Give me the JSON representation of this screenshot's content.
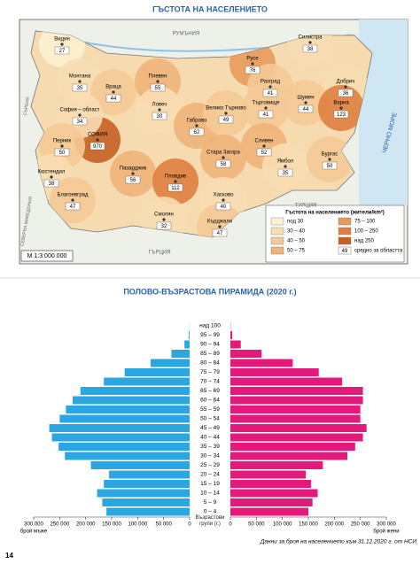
{
  "map": {
    "title": "ГЪСТОТА НА НАСЕЛЕНИЕТО",
    "scale": "M 1:3 000 000",
    "sea": "ЧЕРНО МОРЕ",
    "neighbors": [
      "ТУРЦИЯ",
      "ГЪРЦИЯ",
      "СЕВЕРНА МАКЕДОНИЯ",
      "СЪРБИЯ",
      "РУМЪНИЯ"
    ],
    "legend": {
      "title": "Гъстота на населението (жители/km²)",
      "classes": [
        {
          "label": "под 30",
          "color": "#fdf1d2"
        },
        {
          "label": "30 – 40",
          "color": "#f9ddb2"
        },
        {
          "label": "40 – 50",
          "color": "#f5c996"
        },
        {
          "label": "50 – 75",
          "color": "#efb37a"
        },
        {
          "label": "75 – 100",
          "color": "#e89a5c"
        },
        {
          "label": "100 – 250",
          "color": "#df7f40"
        },
        {
          "label": "над 250",
          "color": "#c65f24"
        }
      ],
      "mean_sample": 49,
      "mean_label": "средно за областта"
    },
    "regions": [
      {
        "name": "Видин",
        "value": 27,
        "color": "#fdf1d2"
      },
      {
        "name": "Монтана",
        "value": 35,
        "color": "#f9ddb2"
      },
      {
        "name": "Враца",
        "value": 44,
        "color": "#f5c996"
      },
      {
        "name": "Плевен",
        "value": 55,
        "color": "#efb37a"
      },
      {
        "name": "Ловеч",
        "value": 30,
        "color": "#f9ddb2"
      },
      {
        "name": "Габрово",
        "value": 62,
        "color": "#efb37a"
      },
      {
        "name": "Велико Търново",
        "value": 49,
        "color": "#f5c996"
      },
      {
        "name": "Русе",
        "value": 76,
        "color": "#e89a5c"
      },
      {
        "name": "Силистра",
        "value": 38,
        "color": "#f9ddb2"
      },
      {
        "name": "Добрич",
        "value": 36,
        "color": "#f9ddb2"
      },
      {
        "name": "Разград",
        "value": 41,
        "color": "#f5c996"
      },
      {
        "name": "Търговище",
        "value": 41,
        "color": "#f5c996"
      },
      {
        "name": "Шумен",
        "value": 44,
        "color": "#f5c996"
      },
      {
        "name": "Варна",
        "value": 123,
        "color": "#df7f40"
      },
      {
        "name": "СОФИЯ",
        "value": 970,
        "color": "#c65f24"
      },
      {
        "name": "София – област",
        "value": 34,
        "color": "#f9ddb2"
      },
      {
        "name": "Перник",
        "value": 50,
        "color": "#f5c996"
      },
      {
        "name": "Кюстендил",
        "value": 38,
        "color": "#f9ddb2"
      },
      {
        "name": "Благоевград",
        "value": 47,
        "color": "#f5c996"
      },
      {
        "name": "Пазарджик",
        "value": 56,
        "color": "#efb37a"
      },
      {
        "name": "Пловдив",
        "value": 112,
        "color": "#df7f40"
      },
      {
        "name": "Стара Загора",
        "value": 58,
        "color": "#efb37a"
      },
      {
        "name": "Сливен",
        "value": 52,
        "color": "#efb37a"
      },
      {
        "name": "Ямбол",
        "value": 35,
        "color": "#f9ddb2"
      },
      {
        "name": "Бургас",
        "value": 50,
        "color": "#f5c996"
      },
      {
        "name": "Хасково",
        "value": 40,
        "color": "#f9ddb2"
      },
      {
        "name": "Кърджали",
        "value": 47,
        "color": "#f5c996"
      },
      {
        "name": "Смолян",
        "value": 32,
        "color": "#f9ddb2"
      }
    ]
  },
  "chart_data": {
    "type": "pyramid",
    "title": "ПОЛОВО-ВЪЗРАСТОВА ПИРАМИДА (2020 г.)",
    "category_axis_label": "Възрастови групи (г.)",
    "categories": [
      "0 – 4",
      "5 – 9",
      "10 – 14",
      "15 – 19",
      "20 – 24",
      "25 – 29",
      "30 – 34",
      "35 – 39",
      "40 – 44",
      "45 – 49",
      "50 – 54",
      "55 – 59",
      "60 – 64",
      "65 – 69",
      "70 – 74",
      "75 – 79",
      "80 – 84",
      "85 – 89",
      "90 – 94",
      "95 – 99",
      "над 100"
    ],
    "series": [
      {
        "name": "брой мъже",
        "color": "#2aa6e2",
        "values": [
          160000,
          168000,
          178000,
          165000,
          155000,
          190000,
          240000,
          252000,
          265000,
          270000,
          250000,
          238000,
          225000,
          210000,
          165000,
          125000,
          75000,
          35000,
          10000,
          1500,
          200
        ]
      },
      {
        "name": "брой жени",
        "color": "#e3197c",
        "values": [
          150000,
          158000,
          168000,
          155000,
          145000,
          178000,
          225000,
          240000,
          255000,
          262000,
          250000,
          250000,
          255000,
          255000,
          215000,
          170000,
          120000,
          60000,
          20000,
          3500,
          400
        ]
      }
    ],
    "xlim": [
      0,
      300000
    ],
    "xticks": [
      0,
      {
        "value": 50000,
        "label": "50 000"
      },
      {
        "value": 100000,
        "label": "100 000"
      },
      {
        "value": 150000,
        "label": "150 000"
      },
      {
        "value": 200000,
        "label": "200 000"
      },
      {
        "value": 250000,
        "label": "250 000"
      },
      {
        "value": 300000,
        "label": "300 000"
      }
    ],
    "source": "Данни за броя на населението към 31.12.2020 г. от НСИ"
  },
  "page_number": "14"
}
